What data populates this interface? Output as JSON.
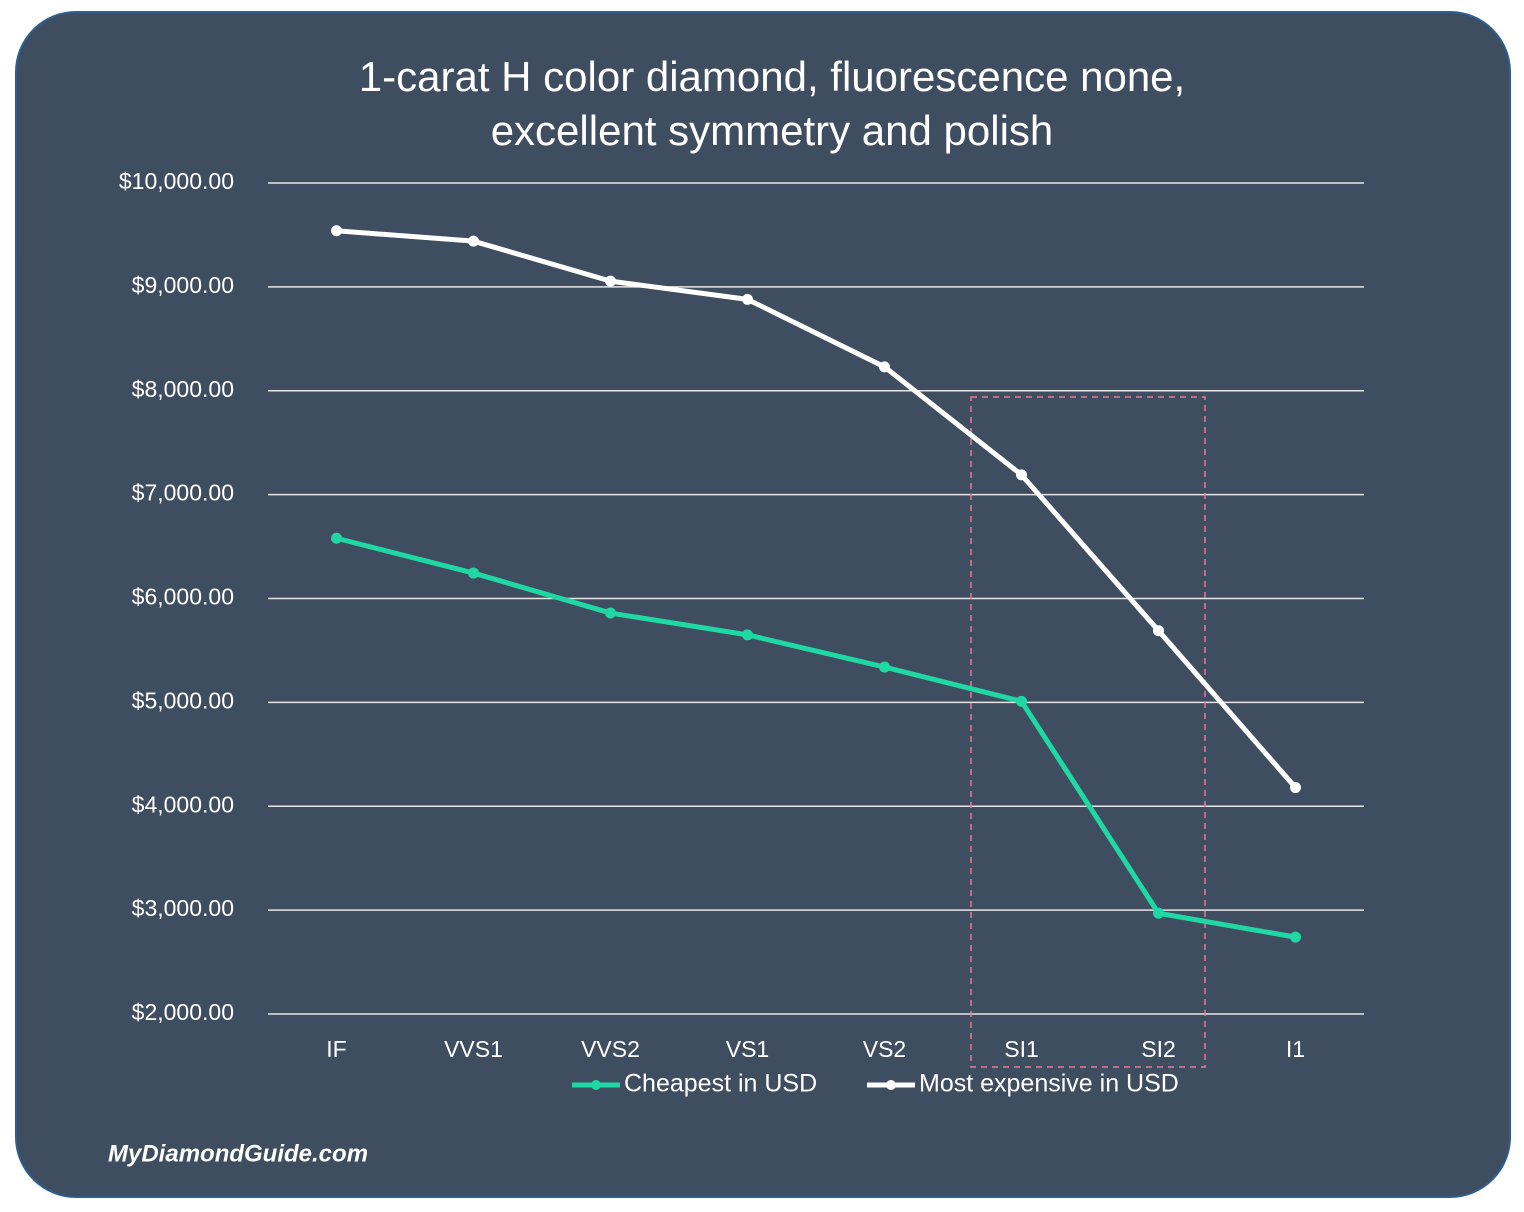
{
  "chart_data": {
    "type": "line",
    "title": [
      "1-carat H color diamond, fluorescence none,",
      "excellent symmetry and polish"
    ],
    "categories": [
      "IF",
      "VVS1",
      "VVS2",
      "VS1",
      "VS2",
      "SI1",
      "SI2",
      "I1"
    ],
    "series": [
      {
        "name": "Cheapest in USD",
        "color": "#1fd8a4",
        "values": [
          6580,
          6245,
          5860,
          5650,
          5340,
          5010,
          2970,
          2740
        ]
      },
      {
        "name": "Most expensive in USD",
        "color": "#ffffff",
        "values": [
          9540,
          9440,
          9055,
          8880,
          8230,
          7190,
          5690,
          4180
        ]
      }
    ],
    "ylim": [
      2000,
      10000
    ],
    "yticks": [
      {
        "value": 2000,
        "label": "$2,000.00"
      },
      {
        "value": 3000,
        "label": "$3,000.00"
      },
      {
        "value": 4000,
        "label": "$4,000.00"
      },
      {
        "value": 5000,
        "label": "$5,000.00"
      },
      {
        "value": 6000,
        "label": "$6,000.00"
      },
      {
        "value": 7000,
        "label": "$7,000.00"
      },
      {
        "value": 8000,
        "label": "$8,000.00"
      },
      {
        "value": 9000,
        "label": "$9,000.00"
      },
      {
        "value": 10000,
        "label": "$10,000.00"
      }
    ],
    "grid": true,
    "legend": "bottom",
    "source": "MyDiamondGuide.com"
  }
}
